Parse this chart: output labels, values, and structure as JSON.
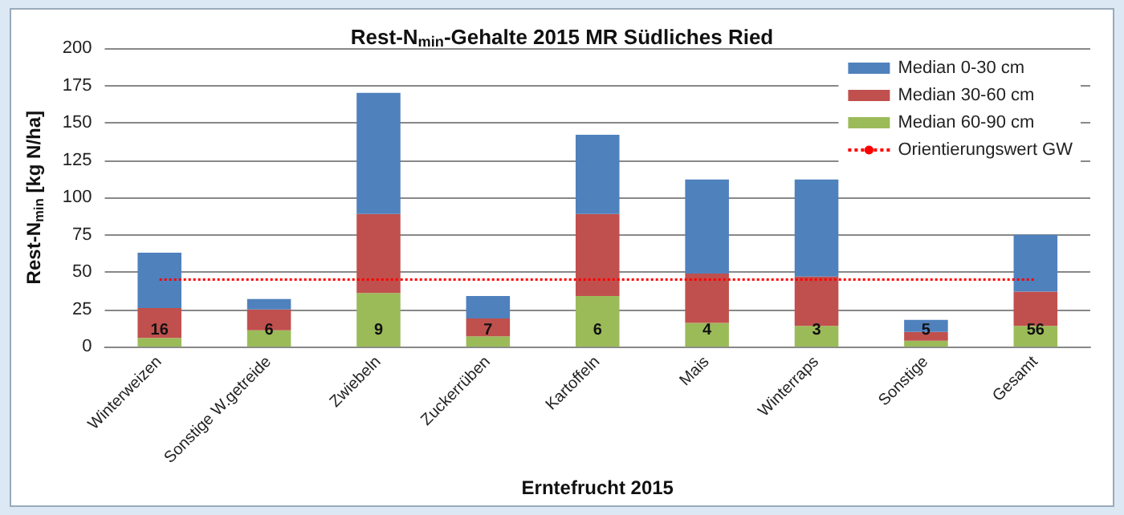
{
  "chart_data": {
    "type": "bar",
    "stacked": true,
    "title": "Rest-N$_{min}$-Gehalte 2015 MR Südliches Ried",
    "xlabel": "Erntefrucht 2015",
    "ylabel": "Rest-N$_{min}$ [kg N/ha]",
    "categories": [
      "Winterweizen",
      "Sonstige W.getreide",
      "Zwiebeln",
      "Zuckerrüben",
      "Kartoffeln",
      "Mais",
      "Winterraps",
      "Sonstige",
      "Gesamt"
    ],
    "series": [
      {
        "name": "Median 60-90 cm",
        "color": "#9bbb59",
        "values": [
          6,
          11,
          36,
          7,
          34,
          16,
          14,
          4,
          14
        ]
      },
      {
        "name": "Median 30-60 cm",
        "color": "#c0504d",
        "values": [
          20,
          14,
          53,
          12,
          55,
          33,
          33,
          6,
          23
        ]
      },
      {
        "name": "Median 0-30 cm",
        "color": "#4f81bd",
        "values": [
          37,
          7,
          81,
          15,
          53,
          63,
          65,
          8,
          38
        ]
      }
    ],
    "ref_lines": [
      {
        "axis": "y",
        "value": 45,
        "label": "Orientierungswert GW",
        "color": "#ff0000",
        "line_style": "dotted"
      }
    ],
    "annotations": [
      "16",
      "6",
      "9",
      "7",
      "6",
      "4",
      "3",
      "5",
      "56"
    ],
    "ylim": [
      0,
      200
    ],
    "yticks": [
      0,
      25,
      50,
      75,
      100,
      125,
      150,
      175,
      200
    ],
    "grid": "y",
    "legend": "top right"
  }
}
